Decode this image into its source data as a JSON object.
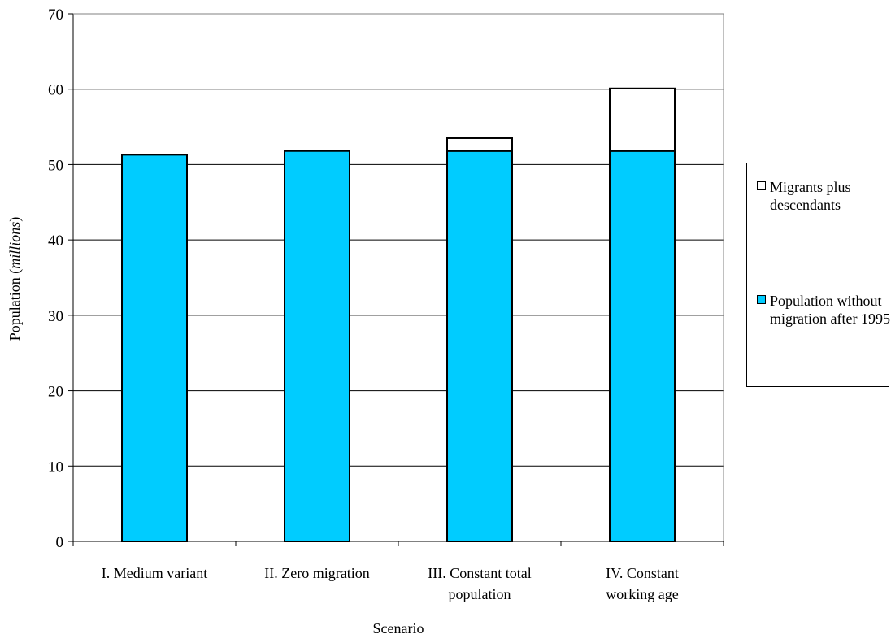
{
  "chart_data": {
    "type": "bar",
    "stacked": true,
    "categories": [
      [
        "I. Medium variant"
      ],
      [
        "II. Zero migration"
      ],
      [
        "III. Constant total",
        "population"
      ],
      [
        "IV. Constant",
        "working age"
      ]
    ],
    "series": [
      {
        "name": "Population without migration after 1995",
        "color": "#00ccff",
        "values": [
          51.3,
          51.8,
          51.8,
          51.8
        ]
      },
      {
        "name": "Migrants plus descendants",
        "color": "#ffffff",
        "values": [
          0,
          0,
          1.7,
          8.3
        ]
      }
    ],
    "xlabel": "Scenario",
    "ylabel": {
      "prefix": "Population (",
      "italic": "millions",
      "suffix": ")"
    },
    "ylim": [
      0,
      70
    ],
    "yticks": [
      0,
      10,
      20,
      30,
      40,
      50,
      60,
      70
    ],
    "grid": true,
    "legend_position": "right"
  },
  "legend": {
    "items": [
      {
        "label": "Migrants plus descendants",
        "color": "#ffffff"
      },
      {
        "label": "Population without migration after 1995",
        "color": "#00ccff"
      }
    ]
  }
}
